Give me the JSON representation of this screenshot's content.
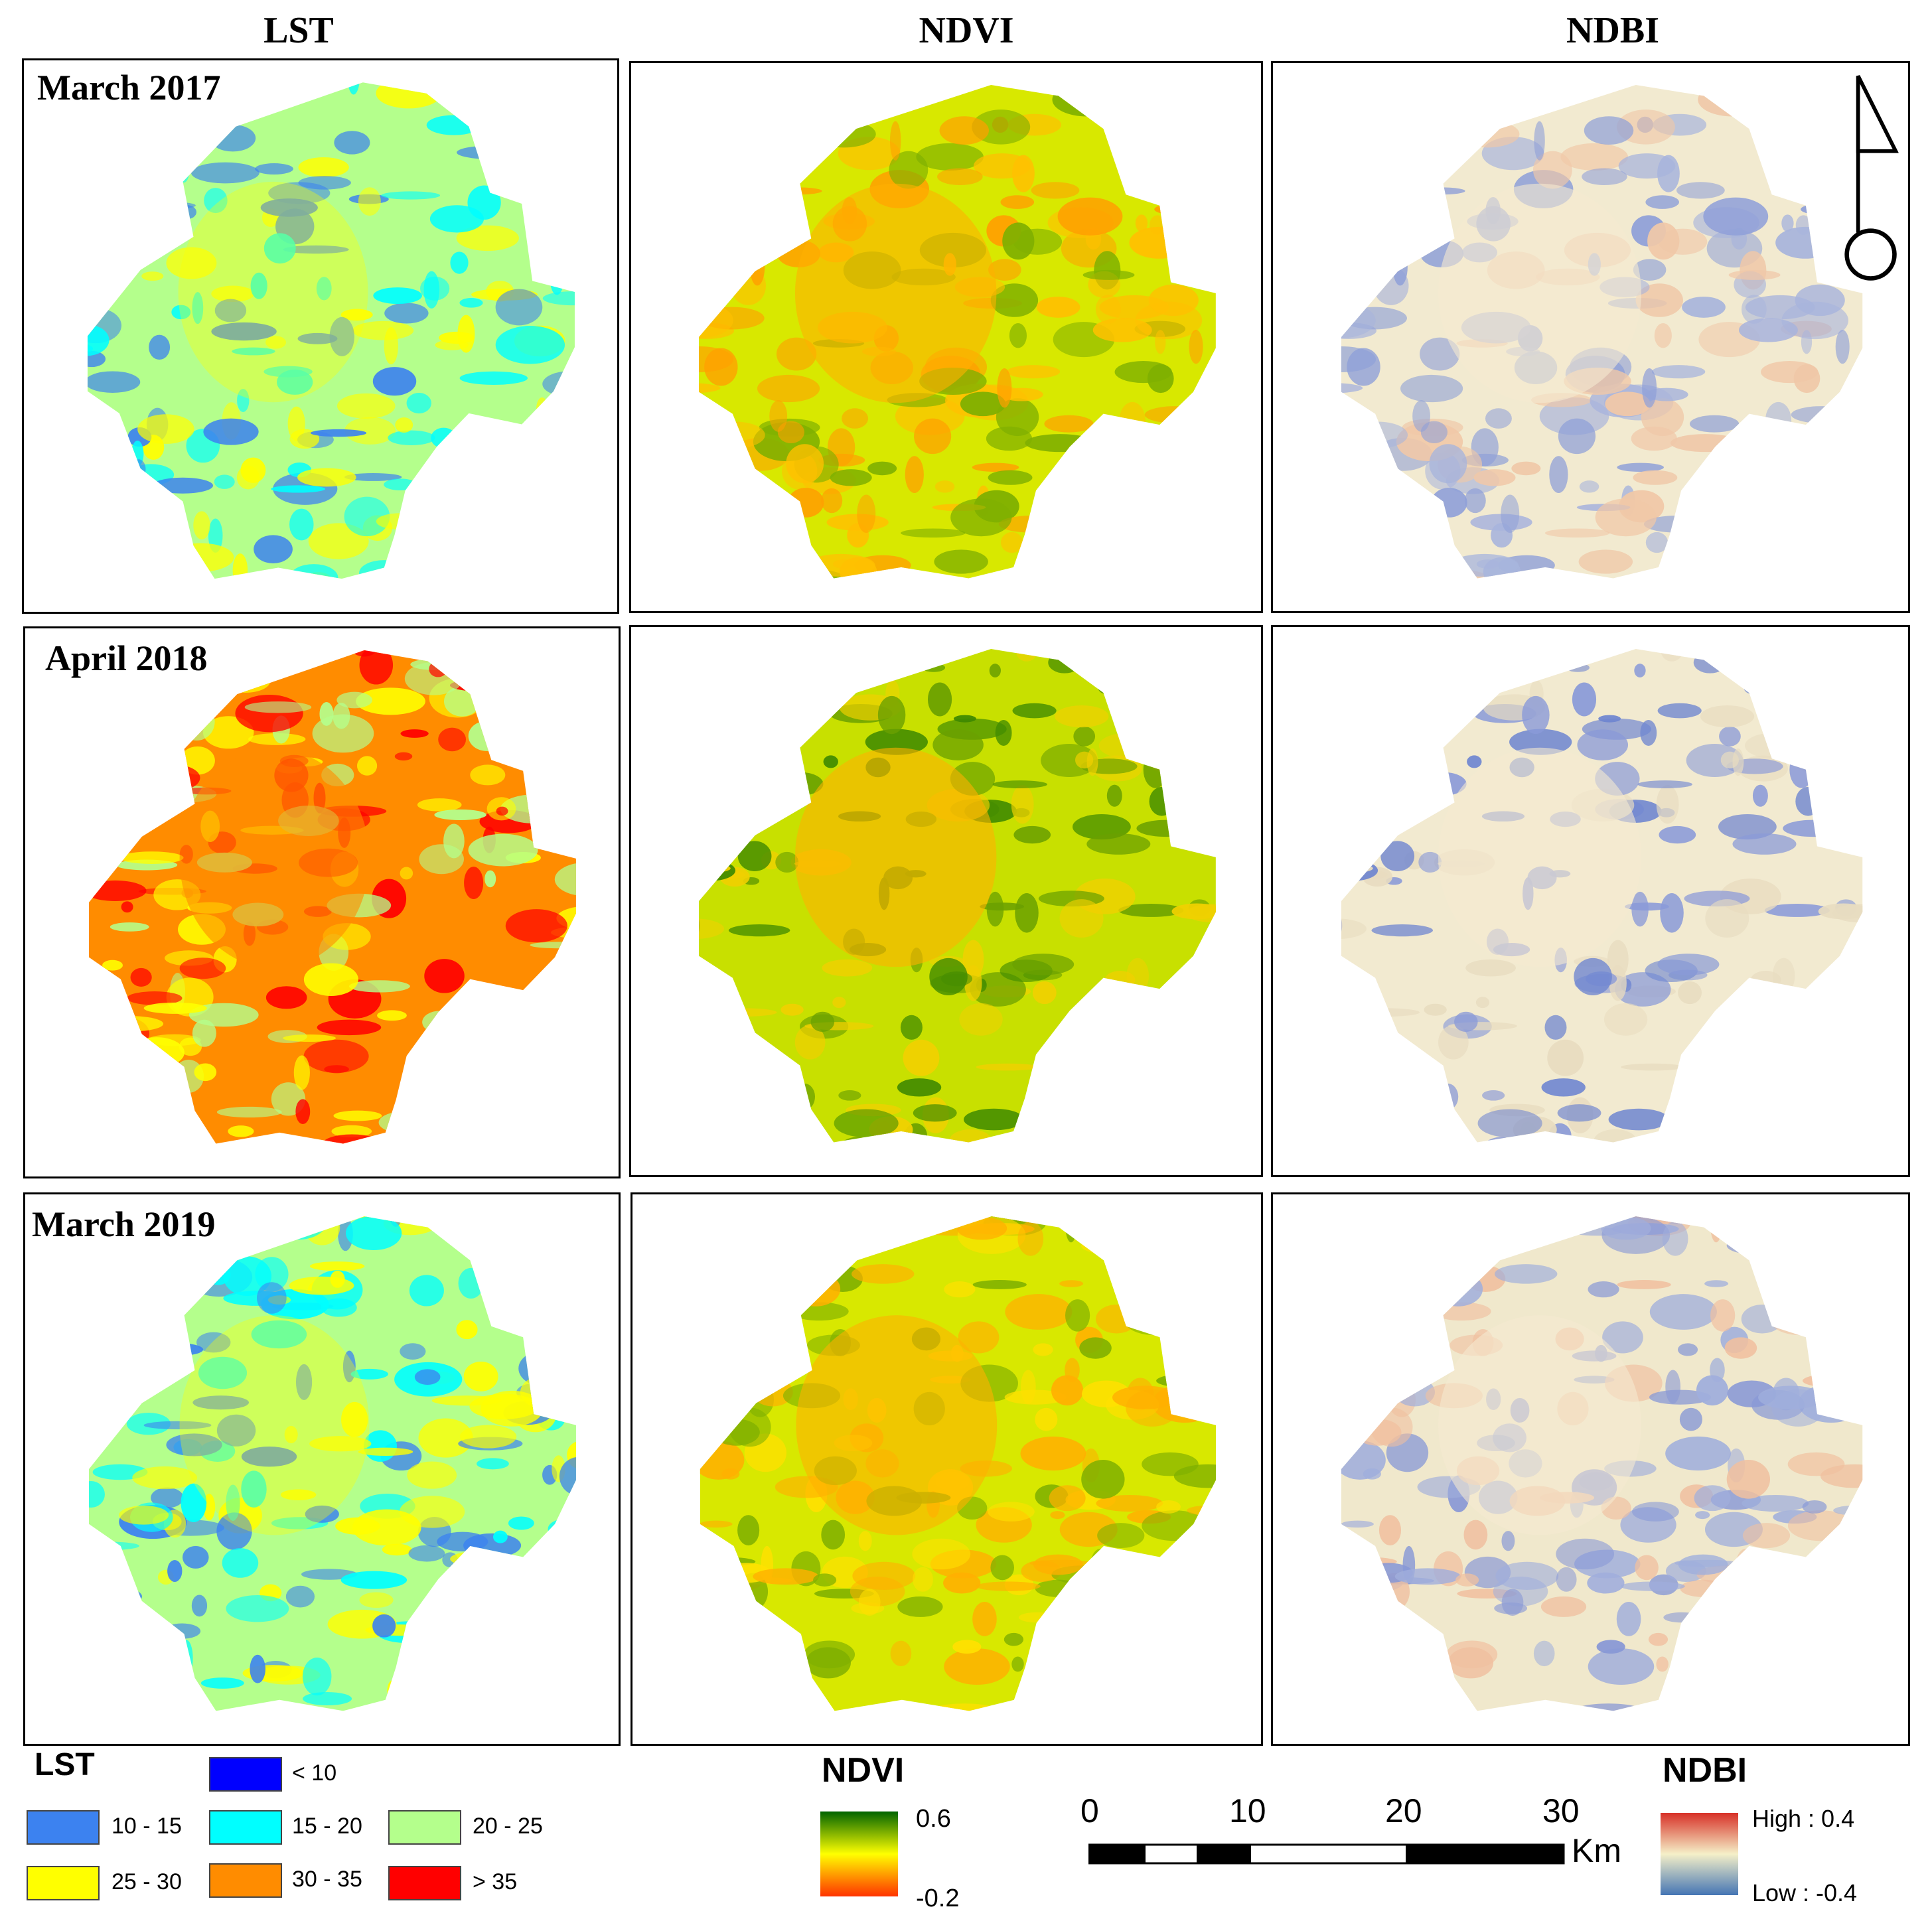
{
  "columns": {
    "lst": "LST",
    "ndvi": "NDVI",
    "ndbi": "NDBI"
  },
  "rows": [
    {
      "label": "March 2017"
    },
    {
      "label": "April 2018"
    },
    {
      "label": "March 2019"
    }
  ],
  "lst_legend": {
    "title": "LST",
    "classes": [
      {
        "label": "< 10",
        "color": "#0000ff"
      },
      {
        "label": "10 - 15",
        "color": "#3c82f0"
      },
      {
        "label": "15 - 20",
        "color": "#00ffff"
      },
      {
        "label": "20 - 25",
        "color": "#b4ff8c"
      },
      {
        "label": "25 - 30",
        "color": "#ffff00"
      },
      {
        "label": "30 - 35",
        "color": "#ff8c00"
      },
      {
        "label": "> 35",
        "color": "#ff0000"
      }
    ]
  },
  "ndvi_legend": {
    "title": "NDVI",
    "max": "0.6",
    "min": "-0.2",
    "colors": [
      "#006400",
      "#ffff00",
      "#ff3300"
    ]
  },
  "ndbi_legend": {
    "title": "NDBI",
    "high": "High : 0.4",
    "low": "Low : -0.4",
    "colors": [
      "#d73027",
      "#f5f0c8",
      "#4575b4"
    ]
  },
  "scale_bar": {
    "ticks": [
      "0",
      "10",
      "20",
      "30"
    ],
    "unit": "Km"
  },
  "north_arrow": {
    "icon": "north-arrow-icon"
  }
}
